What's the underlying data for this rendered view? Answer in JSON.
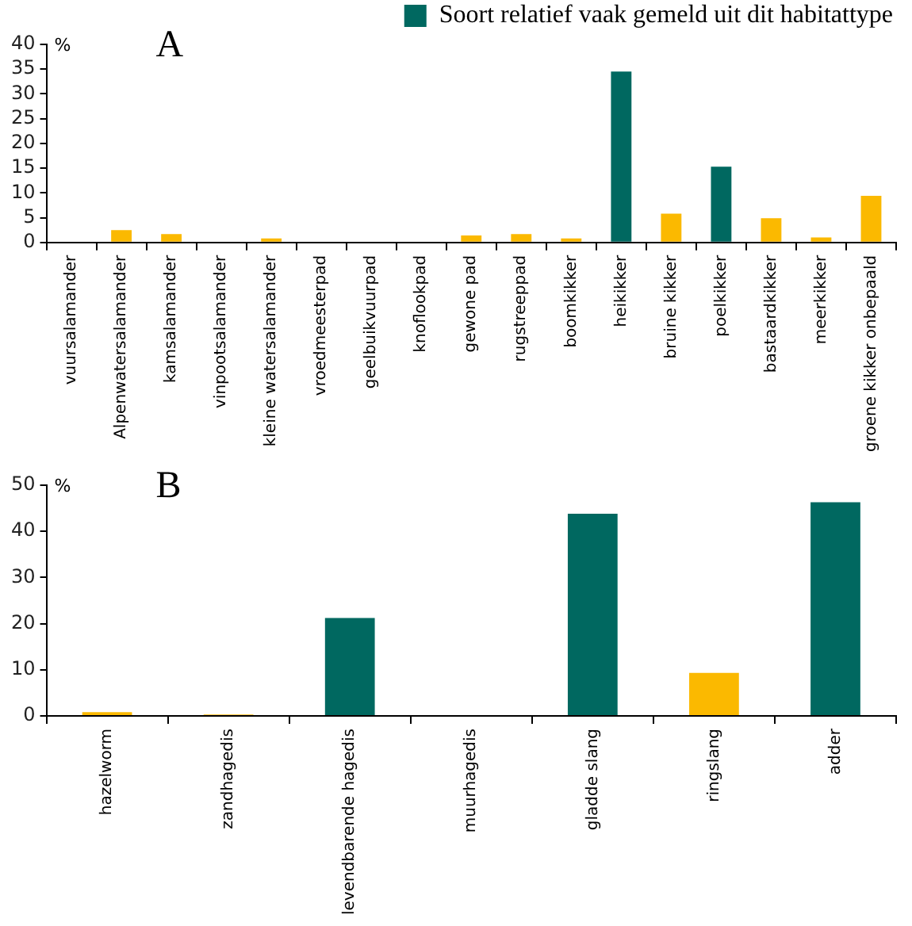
{
  "chart_data": [
    {
      "type": "bar",
      "title": "A",
      "ylabel": "%",
      "legend": "top right",
      "categories": [
        "vuursalamander",
        "Alpenwatersalamander",
        "kamsalamander",
        "vinpootsalamander",
        "kleine watersalamander",
        "vroedmeesterpad",
        "geelbuikvuurpad",
        "knoflookpad",
        "gewone pad",
        "rugstreeppad",
        "boomkikker",
        "heikikker",
        "bruine kikker",
        "poelkikker",
        "bastaardkikker",
        "meerkikker",
        "groene kikker onbepaald"
      ],
      "series": [
        {
          "color": "#fbb900",
          "values": [
            0,
            2.5,
            1.7,
            0,
            0.8,
            0,
            0,
            0,
            1.4,
            1.7,
            0.8,
            null,
            5.8,
            null,
            4.9,
            1.0,
            9.4
          ]
        },
        {
          "name": "Soort relatief vaak gemeld uit dit habitattype",
          "color": "#006860",
          "values": [
            null,
            null,
            null,
            null,
            null,
            null,
            null,
            null,
            null,
            null,
            null,
            34.5,
            null,
            15.3,
            null,
            null,
            null
          ]
        }
      ],
      "ylim": [
        0,
        40
      ],
      "yticks": [
        0,
        5,
        10,
        15,
        20,
        25,
        30,
        35,
        40
      ]
    },
    {
      "type": "bar",
      "title": "B",
      "ylabel": "%",
      "categories": [
        "hazelworm",
        "zandhagedis",
        "levendbarende hagedis",
        "muurhagedis",
        "gladde slang",
        "ringslang",
        "adder"
      ],
      "series": [
        {
          "color": "#fbb900",
          "values": [
            0.8,
            0.3,
            null,
            0,
            null,
            9.3,
            null
          ]
        },
        {
          "color": "#006860",
          "values": [
            null,
            null,
            21.2,
            null,
            43.8,
            null,
            46.3
          ]
        }
      ],
      "ylim": [
        0,
        50
      ],
      "yticks": [
        0,
        10,
        20,
        30,
        40,
        50
      ]
    }
  ]
}
